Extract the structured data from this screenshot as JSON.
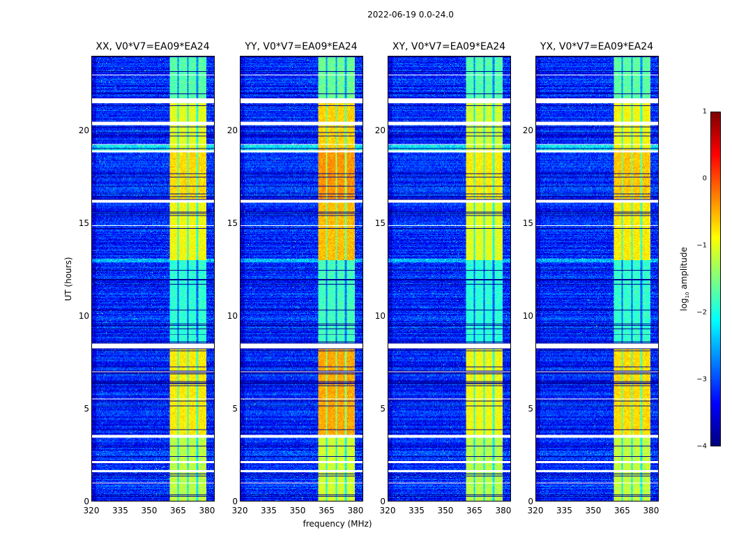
{
  "chart_data": {
    "type": "heatmap",
    "title": "2022-06-19 0.0-24.0",
    "xlabel": "frequency (MHz)",
    "ylabel": "UT (hours)",
    "xlim": [
      320,
      384
    ],
    "ylim": [
      0,
      24
    ],
    "xticks": [
      "320",
      "335",
      "350",
      "365",
      "380"
    ],
    "yticks": [
      "0",
      "5",
      "10",
      "15",
      "20"
    ],
    "colorbar": {
      "label": "log10 amplitude",
      "label_base": "log",
      "label_sub": "10",
      "label_rest": " amplitude",
      "range": [
        -4,
        1
      ],
      "ticks": [
        "1",
        "0",
        "−1",
        "−2",
        "−3",
        "−4"
      ],
      "colormap": "jet"
    },
    "panels": [
      {
        "title": "XX, V0*V7=EA09*EA24",
        "band_gain": 0.0
      },
      {
        "title": "YY, V0*V7=EA09*EA24",
        "band_gain": 0.35
      },
      {
        "title": "XY, V0*V7=EA09*EA24",
        "band_gain": -0.1
      },
      {
        "title": "YX, V0*V7=EA09*EA24",
        "band_gain": 0.1
      }
    ],
    "background_level": -3.2,
    "band_mhz": [
      360.5,
      380
    ],
    "subband_edges_mhz": [
      365,
      370,
      375
    ],
    "flagged_hours": [
      [
        21.5,
        21.75
      ],
      [
        20.3,
        20.5
      ],
      [
        18.85,
        18.95
      ],
      [
        16.15,
        16.3
      ],
      [
        8.25,
        8.5
      ],
      [
        3.45,
        3.6
      ],
      [
        2.05,
        2.15
      ],
      [
        1.55,
        1.68
      ],
      [
        23.0,
        23.05
      ],
      [
        19.25,
        19.3
      ],
      [
        14.85,
        14.9
      ],
      [
        6.95,
        7.0
      ],
      [
        5.5,
        5.55
      ],
      [
        0.95,
        1.0
      ]
    ],
    "band_levels": [
      {
        "hours": [
          0,
          3.5
        ],
        "level": -1.2
      },
      {
        "hours": [
          3.5,
          8.3
        ],
        "level": -0.8
      },
      {
        "hours": [
          8.5,
          13
        ],
        "level": -1.9
      },
      {
        "hours": [
          13,
          16.2
        ],
        "level": -0.9
      },
      {
        "hours": [
          16.2,
          19
        ],
        "level": -0.7
      },
      {
        "hours": [
          19,
          21.5
        ],
        "level": -1.0
      },
      {
        "hours": [
          21.7,
          24
        ],
        "level": -1.7
      }
    ]
  }
}
